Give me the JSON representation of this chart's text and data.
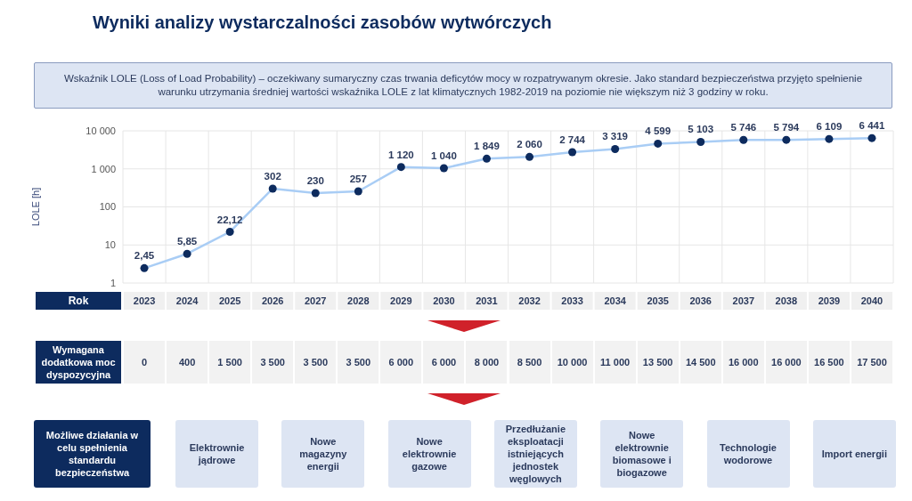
{
  "chart_data": [
    {
      "type": "line",
      "title": "Wyniki analizy wystarczalności zasobów wytwórczych",
      "subtitle": "Wskaźnik LOLE (Loss of Load Probability) – oczekiwany sumaryczny czas trwania deficytów mocy w rozpatrywanym okresie. Jako standard bezpieczeństwa przyjęto spełnienie warunku utrzymania średniej wartości wskaźnika LOLE z lat klimatycznych 1982-2019 na poziomie nie większym niż 3 godziny w roku.",
      "xlabel": "Rok",
      "ylabel": "LOLE [h]",
      "categories": [
        "2023",
        "2024",
        "2025",
        "2026",
        "2027",
        "2028",
        "2029",
        "2030",
        "2031",
        "2032",
        "2033",
        "2034",
        "2035",
        "2036",
        "2037",
        "2038",
        "2039",
        "2040"
      ],
      "series": [
        {
          "color": "#a9cdf5",
          "values": [
            2.45,
            5.85,
            22.12,
            302,
            230,
            257,
            1120,
            1040,
            1849,
            2060,
            2744,
            3319,
            4599,
            5103,
            5746,
            5794,
            6109,
            6441
          ],
          "value_labels": [
            "2,45",
            "5,85",
            "22,12",
            "302",
            "230",
            "257",
            "1 120",
            "1 040",
            "1 849",
            "2 060",
            "2 744",
            "3 319",
            "4 599",
            "5 103",
            "5 746",
            "5 794",
            "6 109",
            "6 441"
          ]
        }
      ],
      "log": "y",
      "ylim": [
        1,
        10000
      ],
      "yticks": [
        1,
        10,
        100,
        {
          "value": 1000,
          "label": "1 000"
        },
        {
          "value": 10000,
          "label": "10 000"
        }
      ],
      "grid": true,
      "marker": "circle",
      "legend": false
    },
    {
      "type": "other",
      "title": "Wymagana dodatkowa moc dyspozycyjna",
      "data_labels": true,
      "values": [
        0,
        400,
        1500,
        3500,
        3500,
        3500,
        6000,
        6000,
        8000,
        8500,
        10000,
        11000,
        13500,
        14500,
        16000,
        16000,
        16500,
        17500
      ]
    },
    {
      "type": "other",
      "title": "Możliwe działania w celu spełnienia standardu bezpieczeństwa",
      "annotations": [
        "Elektrownie jądrowe",
        "Nowe magazyny energii",
        "Nowe elektrownie gazowe",
        "Przedłużanie eksploatacji istniejących jednostek węglowych",
        "Nowe elektrownie biomasowe i biogazowe",
        "Technologie wodorowe",
        "Import energii"
      ]
    }
  ]
}
